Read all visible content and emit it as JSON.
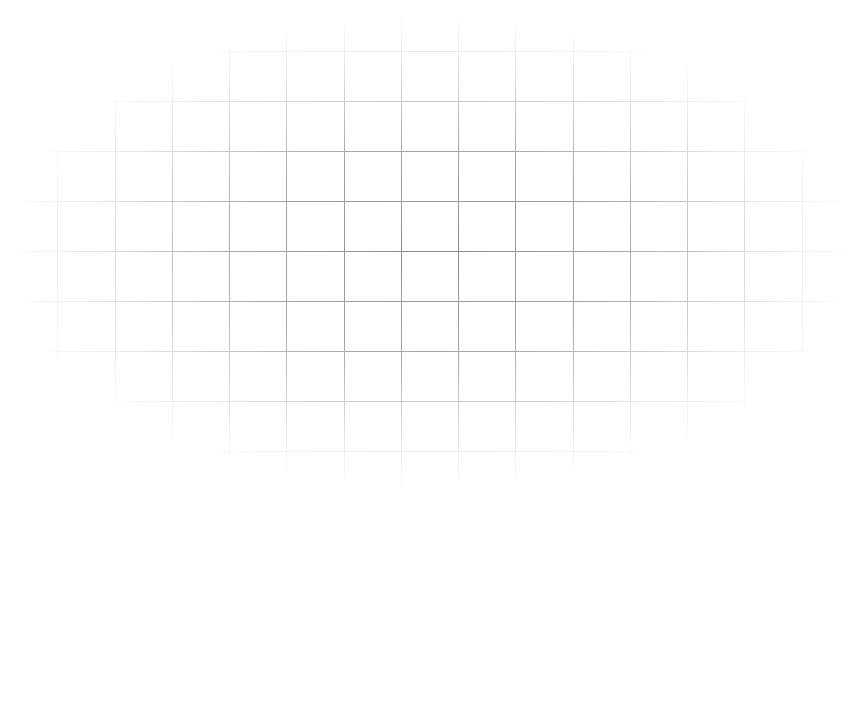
{
  "background": {
    "pattern": "grid",
    "line_color": "#8a8a8a",
    "background_color": "#ffffff",
    "fade": "radial",
    "text": []
  }
}
